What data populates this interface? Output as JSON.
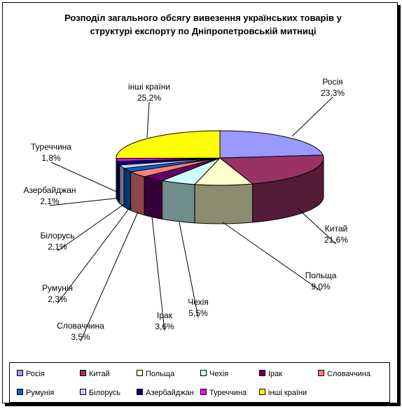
{
  "chart_data": {
    "type": "pie",
    "title_lines": [
      "Розподіл загального обсягу вивезення українських товарів у",
      "структурі експорту по Дніпропетровській митниці"
    ],
    "slices": [
      {
        "name": "Росія",
        "value": 23.3,
        "label": "23,3%",
        "color": "#9999ff"
      },
      {
        "name": "Китай",
        "value": 21.6,
        "label": "21,6%",
        "color": "#993366"
      },
      {
        "name": "Польща",
        "value": 9.0,
        "label": "9,0%",
        "color": "#ffffcc"
      },
      {
        "name": "Чехія",
        "value": 5.5,
        "label": "5,5%",
        "color": "#ccffff"
      },
      {
        "name": "Ірак",
        "value": 3.6,
        "label": "3,6%",
        "color": "#660066"
      },
      {
        "name": "Словаччина",
        "value": 3.5,
        "label": "3,5%",
        "color": "#ff8080"
      },
      {
        "name": "Румунія",
        "value": 2.3,
        "label": "2,3%",
        "color": "#0066cc"
      },
      {
        "name": "Білорусь",
        "value": 2.1,
        "label": "2,1%",
        "color": "#ccccff"
      },
      {
        "name": "Азербайджан",
        "value": 2.1,
        "label": "2,1%",
        "color": "#000080"
      },
      {
        "name": "Туреччина",
        "value": 1.8,
        "label": "1,8%",
        "color": "#ff00ff"
      },
      {
        "name": "інші країни",
        "value": 25.2,
        "label": "25,2%",
        "color": "#ffff00"
      }
    ],
    "legend_position": "bottom"
  }
}
